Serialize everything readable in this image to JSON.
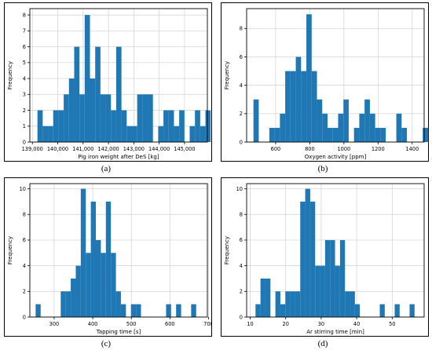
{
  "chart_data": [
    {
      "type": "bar",
      "caption": "(a)",
      "xlabel": "Pig iron weight after DeS [kg]",
      "ylabel": "Frequency",
      "xlim": [
        138900,
        145900
      ],
      "ylim": [
        0,
        8.4
      ],
      "xticks": [
        139000,
        140000,
        141000,
        142000,
        143000,
        144000,
        145000
      ],
      "xtick_labels": [
        "139,000",
        "140,000",
        "141,000",
        "142,000",
        "143,000",
        "144,000",
        "145,000"
      ],
      "yticks": [
        0,
        1,
        2,
        3,
        4,
        5,
        6,
        7,
        8
      ],
      "ytick_labels": [
        "0",
        "1",
        "2",
        "3",
        "4",
        "5",
        "6",
        "7",
        "8"
      ],
      "grid": true,
      "bins_start": 139200,
      "bin_width": 207,
      "values": [
        2,
        1,
        1,
        2,
        2,
        3,
        4,
        6,
        3,
        8,
        4,
        6,
        3,
        3,
        2,
        6,
        2,
        1,
        1,
        3,
        3,
        3,
        0,
        1,
        2,
        2,
        1,
        2,
        0,
        1,
        2,
        1,
        2
      ]
    },
    {
      "type": "bar",
      "caption": "(b)",
      "xlabel": "Oxygen activity [ppm]",
      "ylabel": "Frequency",
      "xlim": [
        430,
        1470
      ],
      "ylim": [
        0,
        9.4
      ],
      "xticks": [
        600,
        800,
        1000,
        1200,
        1400
      ],
      "xtick_labels": [
        "600",
        "800",
        "1000",
        "1200",
        "1400"
      ],
      "yticks": [
        0,
        2,
        4,
        6,
        8
      ],
      "ytick_labels": [
        "0",
        "2",
        "4",
        "6",
        "8"
      ],
      "grid": true,
      "bins_start": 470,
      "bin_width": 31,
      "values": [
        3,
        0,
        0,
        1,
        1,
        2,
        5,
        5,
        6,
        5,
        9,
        5,
        3,
        2,
        1,
        1,
        2,
        3,
        0,
        1,
        2,
        3,
        2,
        1,
        1,
        0,
        0,
        2,
        1,
        0,
        0,
        0,
        1
      ]
    },
    {
      "type": "bar",
      "caption": "(c)",
      "xlabel": "Tapping time [s]",
      "ylabel": "Frequency",
      "xlim": [
        237,
        697
      ],
      "ylim": [
        0,
        10.4
      ],
      "xticks": [
        300,
        400,
        500,
        600,
        700
      ],
      "xtick_labels": [
        "300",
        "400",
        "500",
        "600",
        "700"
      ],
      "yticks": [
        0,
        2,
        4,
        6,
        8,
        10
      ],
      "ytick_labels": [
        "0",
        "2",
        "4",
        "6",
        "8",
        "10"
      ],
      "grid": true,
      "bins_start": 252,
      "bin_width": 13,
      "values": [
        1,
        0,
        0,
        0,
        0,
        2,
        2,
        3,
        4,
        10,
        5,
        9,
        6,
        5,
        9,
        5,
        2,
        1,
        0,
        1,
        1,
        0,
        0,
        0,
        0,
        0,
        1,
        0,
        1,
        0,
        0,
        1
      ]
    },
    {
      "type": "bar",
      "caption": "(d)",
      "xlabel": "Ar stirring time [min]",
      "ylabel": "Frequency",
      "xlim": [
        9,
        59
      ],
      "ylim": [
        0,
        10.4
      ],
      "xticks": [
        10,
        20,
        30,
        40,
        50
      ],
      "xtick_labels": [
        "10",
        "20",
        "30",
        "40",
        "50"
      ],
      "yticks": [
        0,
        2,
        4,
        6,
        8,
        10
      ],
      "ytick_labels": [
        "0",
        "2",
        "4",
        "6",
        "8",
        "10"
      ],
      "grid": true,
      "bins_start": 11.5,
      "bin_width": 1.4,
      "values": [
        1,
        3,
        3,
        0,
        2,
        1,
        2,
        2,
        2,
        9,
        10,
        9,
        4,
        4,
        6,
        6,
        4,
        6,
        2,
        2,
        1,
        0,
        0,
        0,
        0,
        1,
        0,
        0,
        1,
        0,
        0,
        1
      ]
    }
  ],
  "style": {
    "bar_color": "#1f77b4",
    "grid_color": "#d0d0d0"
  }
}
